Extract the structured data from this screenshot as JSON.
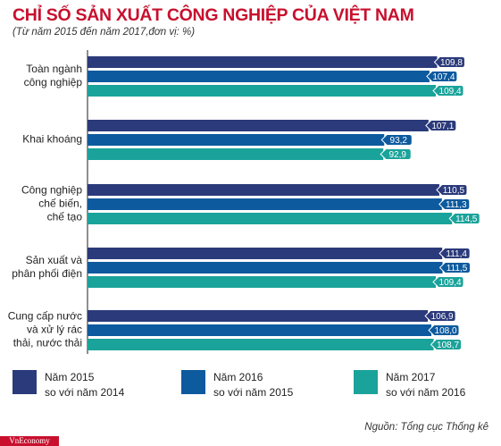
{
  "header": {
    "title": "CHỈ SỐ SẢN XUẤT CÔNG NGHIỆP CỦA VIỆT NAM",
    "subtitle": "(Từ năm 2015 đến năm 2017,đơn vị: %)"
  },
  "footer": {
    "source": "Nguồn: Tổng cục Thống kê",
    "brand": "VnEconomy"
  },
  "legend": {
    "items": [
      {
        "line1": "Năm 2015",
        "line2": "so với năm 2014",
        "color": "#2b3a7a"
      },
      {
        "line1": "Năm 2016",
        "line2": "so với năm 2015",
        "color": "#0d5a9e"
      },
      {
        "line1": "Năm 2017",
        "line2": "so với năm 2016",
        "color": "#1aa39a"
      }
    ]
  },
  "chart_data": {
    "type": "bar",
    "orientation": "horizontal",
    "categories": [
      [
        "Toàn ngành",
        "công nghiệp"
      ],
      [
        "Khai khoáng"
      ],
      [
        "Công nghiệp",
        "chế biến,",
        "chế tạo"
      ],
      [
        "Sản xuất và",
        "phân phối điện"
      ],
      [
        "Cung cấp nước",
        "và xử lý rác",
        "thải, nước thải"
      ]
    ],
    "series": [
      {
        "name": "Năm 2015 so với năm 2014",
        "color": "#2b3a7a",
        "values": [
          109.8,
          107.1,
          110.5,
          111.4,
          106.9
        ],
        "labels": [
          "109,8",
          "107,1",
          "110,5",
          "111,4",
          "106,9"
        ]
      },
      {
        "name": "Năm 2016 so với năm 2015",
        "color": "#0d5a9e",
        "values": [
          107.4,
          93.2,
          111.3,
          111.5,
          108.0
        ],
        "labels": [
          "107,4",
          "93,2",
          "111,3",
          "111,5",
          "108,0"
        ]
      },
      {
        "name": "Năm 2017 so với năm 2016",
        "color": "#1aa39a",
        "values": [
          109.4,
          92.9,
          114.5,
          109.4,
          108.7
        ],
        "labels": [
          "109,4",
          "92,9",
          "114,5",
          "109,4",
          "108,7"
        ]
      }
    ],
    "xlim": [
      0,
      115
    ],
    "grid": false,
    "legend_position": "bottom"
  }
}
